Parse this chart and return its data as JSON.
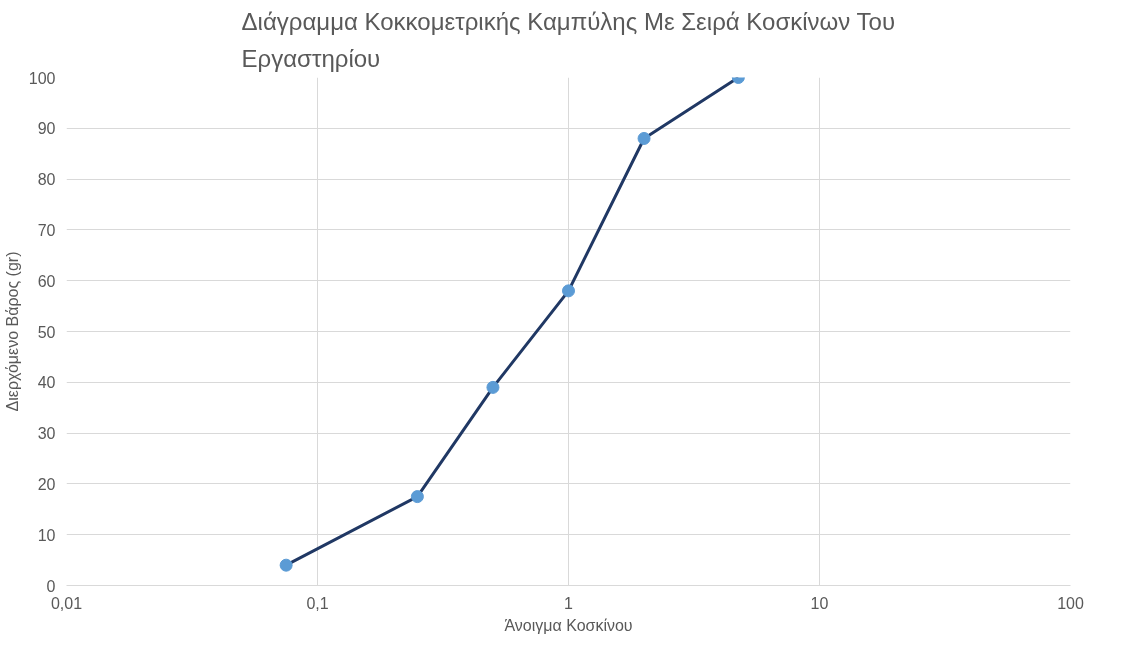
{
  "chart_data": {
    "type": "line",
    "title": "Διάγραμμα Κοκκομετρικής Καμπύλης Με Σειρά Κοσκίνων Του Εργαστηρίου",
    "xlabel": "Άνοιγμα Κοσκίνου",
    "ylabel": "Διερχόμενο Βάρος (gr)",
    "x": [
      0.075,
      0.25,
      0.5,
      1,
      2,
      4.75
    ],
    "series": [
      {
        "color": "#203864",
        "values": [
          4,
          17.5,
          39,
          58,
          88,
          100
        ]
      }
    ],
    "marker": "circle",
    "line_style": "solid",
    "log": "x",
    "grid": true,
    "xlim": [
      0.01,
      100
    ],
    "xticks": [
      {
        "value": 0.01,
        "label": "0,01"
      },
      {
        "value": 0.1,
        "label": "0,1"
      },
      1,
      10,
      100
    ],
    "ylim": [
      0,
      100
    ],
    "yticks": [
      0,
      10,
      20,
      30,
      40,
      50,
      60,
      70,
      80,
      90,
      100
    ]
  }
}
